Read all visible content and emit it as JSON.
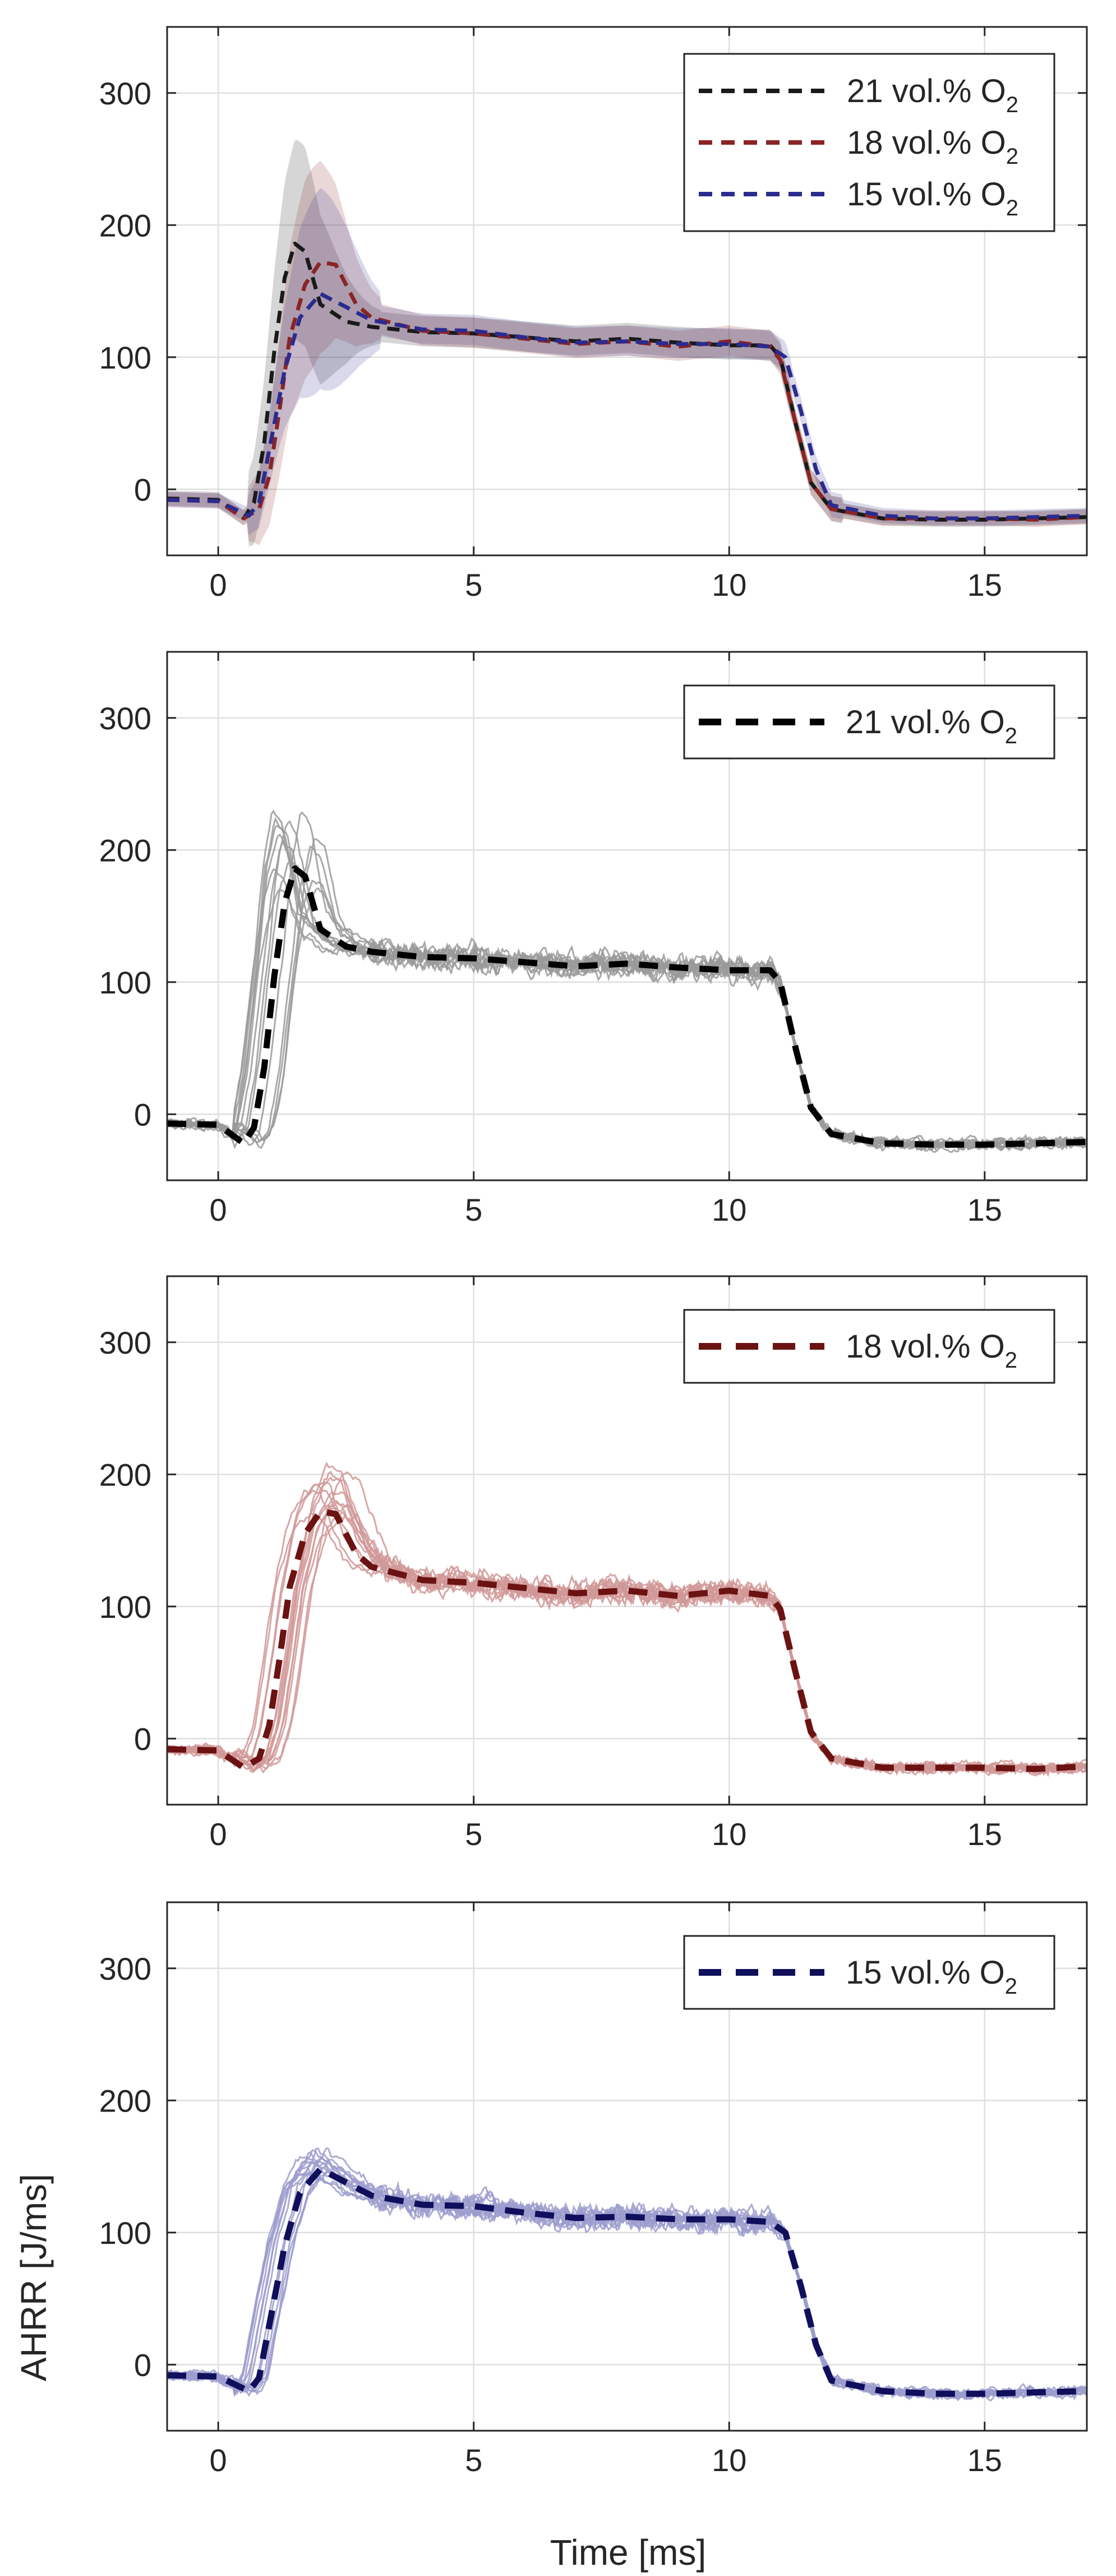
{
  "chart_data": [
    {
      "type": "line",
      "xlim": [
        -1,
        17
      ],
      "ylim": [
        -50,
        350
      ],
      "x_ticks": [
        0,
        5,
        10,
        15
      ],
      "y_ticks": [
        0,
        100,
        200,
        300
      ],
      "x_tick_labels": [
        "0",
        "5",
        "10",
        "15"
      ],
      "y_tick_labels": [
        "0",
        "100",
        "200",
        "300"
      ],
      "xlabel": "",
      "ylabel": "",
      "grid": true,
      "legend_position": "top-right",
      "series": [
        {
          "name": "21 vol.% O",
          "name_subscript": "2",
          "color": "#1a1a1a",
          "x": [
            -1,
            0,
            0.5,
            0.7,
            0.9,
            1.1,
            1.3,
            1.5,
            1.7,
            2.0,
            2.5,
            3,
            4,
            5,
            6,
            7,
            8,
            9,
            10,
            10.8,
            11.0,
            11.3,
            11.6,
            12,
            13,
            14,
            15,
            16,
            17
          ],
          "y": [
            -7,
            -8,
            -22,
            -10,
            35,
            105,
            160,
            186,
            180,
            140,
            127,
            123,
            119,
            118,
            115,
            112,
            114,
            111,
            109,
            109,
            100,
            50,
            5,
            -15,
            -22,
            -23,
            -23,
            -22,
            -21
          ]
        },
        {
          "name": "18 vol.% O",
          "name_subscript": "2",
          "color": "#8b2424",
          "x": [
            -1,
            0,
            0.5,
            0.8,
            1.0,
            1.2,
            1.4,
            1.7,
            2.0,
            2.3,
            2.7,
            3,
            4,
            5,
            6,
            7,
            8,
            9,
            10,
            10.8,
            11.0,
            11.3,
            11.6,
            12,
            13,
            14,
            15,
            16,
            17
          ],
          "y": [
            -8,
            -9,
            -22,
            -15,
            10,
            60,
            115,
            155,
            172,
            170,
            140,
            130,
            120,
            118,
            114,
            110,
            112,
            108,
            112,
            108,
            98,
            50,
            5,
            -15,
            -22,
            -22,
            -22,
            -23,
            -21
          ]
        },
        {
          "name": "15 vol.% O",
          "name_subscript": "2",
          "color": "#2b2b8f",
          "x": [
            -1,
            0,
            0.6,
            0.8,
            1.0,
            1.3,
            1.6,
            2.0,
            2.4,
            3,
            4,
            5,
            6,
            7,
            8,
            9,
            10,
            10.8,
            11.1,
            11.4,
            11.7,
            12,
            13,
            14,
            15,
            16,
            17
          ],
          "y": [
            -8,
            -9,
            -20,
            -10,
            30,
            90,
            130,
            148,
            140,
            128,
            121,
            120,
            115,
            111,
            112,
            110,
            110,
            108,
            100,
            60,
            15,
            -12,
            -20,
            -22,
            -22,
            -21,
            -20
          ]
        }
      ]
    },
    {
      "type": "line",
      "xlim": [
        -1,
        17
      ],
      "ylim": [
        -50,
        350
      ],
      "x_ticks": [
        0,
        5,
        10,
        15
      ],
      "y_ticks": [
        0,
        100,
        200,
        300
      ],
      "x_tick_labels": [
        "0",
        "5",
        "10",
        "15"
      ],
      "y_tick_labels": [
        "0",
        "100",
        "200",
        "300"
      ],
      "xlabel": "",
      "ylabel": "",
      "grid": true,
      "legend_position": "top-right",
      "series": [
        {
          "name": "21 vol.% O",
          "name_subscript": "2",
          "color": "#000000",
          "x": [
            -1,
            0,
            0.5,
            0.7,
            0.9,
            1.1,
            1.3,
            1.5,
            1.7,
            2.0,
            2.5,
            3,
            4,
            5,
            6,
            7,
            8,
            9,
            10,
            10.8,
            11.0,
            11.3,
            11.6,
            12,
            13,
            14,
            15,
            16,
            17
          ],
          "y": [
            -7,
            -8,
            -22,
            -10,
            35,
            105,
            160,
            186,
            180,
            140,
            127,
            123,
            119,
            118,
            115,
            112,
            114,
            111,
            109,
            109,
            100,
            50,
            5,
            -15,
            -22,
            -23,
            -23,
            -22,
            -21
          ]
        }
      ]
    },
    {
      "type": "line",
      "xlim": [
        -1,
        17
      ],
      "ylim": [
        -50,
        350
      ],
      "x_ticks": [
        0,
        5,
        10,
        15
      ],
      "y_ticks": [
        0,
        100,
        200,
        300
      ],
      "x_tick_labels": [
        "0",
        "5",
        "10",
        "15"
      ],
      "y_tick_labels": [
        "0",
        "100",
        "200",
        "300"
      ],
      "xlabel": "",
      "ylabel": "",
      "grid": true,
      "legend_position": "top-right",
      "series": [
        {
          "name": "18 vol.% O",
          "name_subscript": "2",
          "color": "#6b1212",
          "x": [
            -1,
            0,
            0.5,
            0.8,
            1.0,
            1.2,
            1.4,
            1.7,
            2.0,
            2.3,
            2.7,
            3,
            4,
            5,
            6,
            7,
            8,
            9,
            10,
            10.8,
            11.0,
            11.3,
            11.6,
            12,
            13,
            14,
            15,
            16,
            17
          ],
          "y": [
            -8,
            -9,
            -22,
            -15,
            10,
            60,
            115,
            155,
            172,
            170,
            140,
            130,
            120,
            118,
            114,
            110,
            112,
            108,
            112,
            108,
            98,
            50,
            5,
            -15,
            -22,
            -22,
            -22,
            -23,
            -21
          ]
        }
      ]
    },
    {
      "type": "line",
      "xlim": [
        -1,
        17
      ],
      "ylim": [
        -50,
        350
      ],
      "x_ticks": [
        0,
        5,
        10,
        15
      ],
      "y_ticks": [
        0,
        100,
        200,
        300
      ],
      "x_tick_labels": [
        "0",
        "5",
        "10",
        "15"
      ],
      "y_tick_labels": [
        "0",
        "100",
        "200",
        "300"
      ],
      "xlabel": "Time [ms]",
      "ylabel": "AHRR [J/ms]",
      "grid": true,
      "legend_position": "top-right",
      "series": [
        {
          "name": "15 vol.% O",
          "name_subscript": "2",
          "color": "#0f0f5c",
          "x": [
            -1,
            0,
            0.6,
            0.8,
            1.0,
            1.3,
            1.6,
            2.0,
            2.4,
            3,
            4,
            5,
            6,
            7,
            8,
            9,
            10,
            10.8,
            11.1,
            11.4,
            11.7,
            12,
            13,
            14,
            15,
            16,
            17
          ],
          "y": [
            -8,
            -9,
            -20,
            -10,
            30,
            90,
            130,
            148,
            140,
            128,
            121,
            120,
            115,
            111,
            112,
            110,
            110,
            108,
            100,
            60,
            15,
            -12,
            -20,
            -22,
            -22,
            -21,
            -20
          ]
        }
      ]
    }
  ]
}
